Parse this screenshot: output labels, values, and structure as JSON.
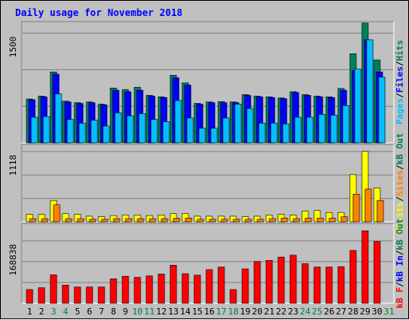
{
  "chart_data": {
    "type": "bar",
    "title": "Daily usage for November 2018",
    "days": [
      "1",
      "2",
      "3",
      "4",
      "5",
      "6",
      "7",
      "8",
      "9",
      "10",
      "11",
      "12",
      "13",
      "14",
      "15",
      "16",
      "17",
      "18",
      "19",
      "20",
      "21",
      "22",
      "23",
      "24",
      "25",
      "26",
      "27",
      "28",
      "29",
      "30",
      "31"
    ],
    "weekend_days": [
      "3",
      "4",
      "10",
      "11",
      "17",
      "18",
      "24",
      "25",
      "31"
    ],
    "panels": [
      {
        "name": "hits-files-pages",
        "ytick_label": "1500",
        "ytick_value": 1500,
        "ymax": 1660,
        "legend": [
          {
            "text": "Pages",
            "color": "#00c0ff"
          },
          {
            "text": "/",
            "color": "#000000"
          },
          {
            "text": "Files",
            "color": "#0000ff"
          },
          {
            "text": "/",
            "color": "#000000"
          },
          {
            "text": "Hits",
            "color": "#008040"
          }
        ],
        "series": [
          {
            "name": "Hits",
            "color": "#008060",
            "values": [
              600,
              640,
              970,
              570,
              550,
              560,
              530,
              750,
              730,
              760,
              650,
              630,
              925,
              820,
              540,
              560,
              565,
              560,
              660,
              640,
              630,
              615,
              700,
              660,
              640,
              630,
              745,
              1220,
              1640,
              1135,
              0
            ]
          },
          {
            "name": "Files",
            "color": "#0000ff",
            "values": [
              590,
              630,
              940,
              560,
              540,
              550,
              520,
              720,
              700,
              720,
              640,
              620,
              890,
              790,
              530,
              550,
              550,
              550,
              650,
              630,
              620,
              605,
              690,
              650,
              630,
              620,
              720,
              990,
              1410,
              970,
              0
            ]
          },
          {
            "name": "Pages",
            "color": "#00c0ff",
            "values": [
              350,
              360,
              670,
              320,
              270,
              310,
              230,
              410,
              370,
              400,
              320,
              290,
              580,
              340,
              200,
              200,
              340,
              530,
              470,
              270,
              270,
              260,
              350,
              350,
              390,
              380,
              510,
              1010,
              1410,
              900,
              0
            ]
          }
        ]
      },
      {
        "name": "visits-sites",
        "ytick_label": "1118",
        "ytick_value": 1118,
        "ymax": 1230,
        "legend": [
          {
            "text": "Visits",
            "color": "#ffff00"
          },
          {
            "text": "/",
            "color": "#000000"
          },
          {
            "text": "Sites",
            "color": "#ff8000"
          },
          {
            "text": "/",
            "color": "#000000"
          },
          {
            "text": "kB Out",
            "color": "#008040"
          }
        ],
        "series": [
          {
            "name": "Visits",
            "color": "#ffff00",
            "values": [
              120,
              120,
              340,
              130,
              120,
              90,
              80,
              100,
              110,
              110,
              100,
              110,
              130,
              130,
              90,
              90,
              90,
              90,
              80,
              90,
              110,
              120,
              110,
              170,
              180,
              150,
              150,
              750,
              1118,
              540,
              0
            ]
          },
          {
            "name": "Sites",
            "color": "#ff8000",
            "values": [
              50,
              50,
              270,
              50,
              50,
              40,
              40,
              50,
              50,
              50,
              50,
              50,
              55,
              60,
              40,
              40,
              40,
              40,
              40,
              40,
              50,
              60,
              50,
              60,
              60,
              60,
              80,
              440,
              520,
              340,
              0
            ]
          }
        ]
      },
      {
        "name": "kbin-kbf",
        "ytick_label": "168838",
        "ytick_value": 168838,
        "ymax": 216000,
        "legend": [
          {
            "text": "kB F",
            "color": "#ff0000"
          },
          {
            "text": "/",
            "color": "#000000"
          },
          {
            "text": "kB In",
            "color": "#0000ff"
          },
          {
            "text": "/",
            "color": "#000000"
          },
          {
            "text": "kB Out",
            "color": "#008040"
          }
        ],
        "series": [
          {
            "name": "kB F",
            "color": "#ff0000",
            "values": [
              37000,
              42000,
              77000,
              49000,
              44000,
              44000,
              44000,
              66000,
              73000,
              70000,
              74000,
              79000,
              103000,
              80000,
              76000,
              91000,
              98000,
              37000,
              93000,
              113000,
              116000,
              125000,
              130000,
              107000,
              98000,
              98000,
              99000,
              143000,
              196000,
              167000,
              0
            ]
          }
        ]
      }
    ]
  }
}
